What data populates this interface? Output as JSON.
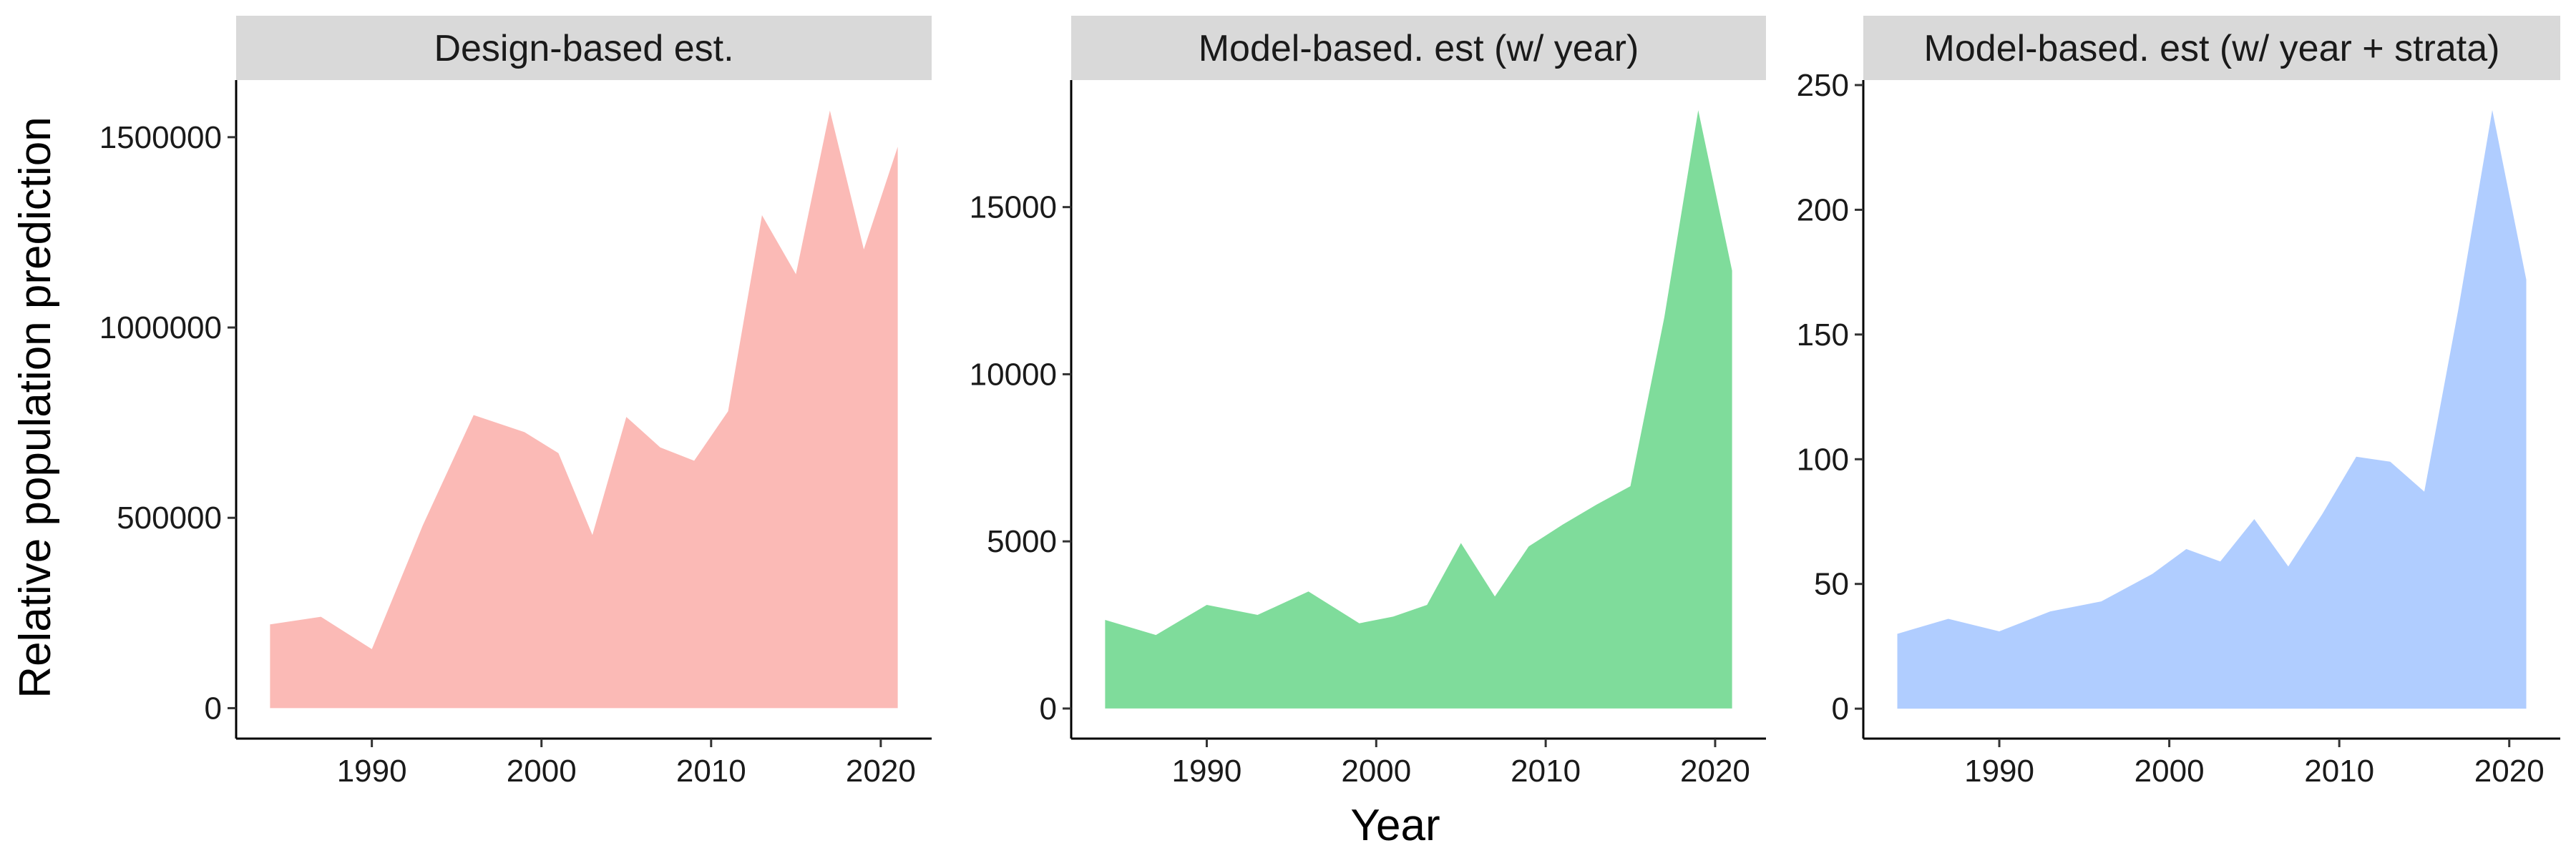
{
  "figure": {
    "xlabel": "Year",
    "ylabel": "Relative population prediction"
  },
  "chart_data": [
    {
      "type": "area",
      "title": "Design-based est.",
      "color": "#F8766D",
      "fill_opacity": 0.5,
      "x": [
        1984,
        1987,
        1990,
        1993,
        1996,
        1999,
        2001,
        2003,
        2005,
        2007,
        2009,
        2011,
        2013,
        2015,
        2017,
        2019,
        2021
      ],
      "y": [
        220000,
        240000,
        155000,
        480000,
        770000,
        725000,
        670000,
        455000,
        765000,
        685000,
        650000,
        780000,
        1295000,
        1140000,
        1570000,
        1205000,
        1475000
      ],
      "xlim": [
        1982,
        2023
      ],
      "ylim": [
        -80000,
        1650000
      ],
      "xticks": [
        1990,
        2000,
        2010,
        2020
      ],
      "yticks": [
        0,
        500000,
        1000000,
        1500000
      ],
      "xtick_labels": [
        "1990",
        "2000",
        "2010",
        "2020"
      ],
      "ytick_labels": [
        "0",
        "500000",
        "1000000",
        "1500000"
      ],
      "grid": false
    },
    {
      "type": "area",
      "title": "Model-based. est (w/ year)",
      "color": "#00BA38",
      "fill_opacity": 0.5,
      "x": [
        1984,
        1987,
        1990,
        1993,
        1996,
        1999,
        2001,
        2003,
        2005,
        2007,
        2009,
        2011,
        2013,
        2015,
        2017,
        2019,
        2021
      ],
      "y": [
        2650,
        2200,
        3100,
        2800,
        3500,
        2550,
        2750,
        3100,
        4950,
        3350,
        4850,
        5500,
        6100,
        6650,
        11700,
        17900,
        13100
      ],
      "xlim": [
        1982,
        2023
      ],
      "ylim": [
        -900,
        18800
      ],
      "xticks": [
        1990,
        2000,
        2010,
        2020
      ],
      "yticks": [
        0,
        5000,
        10000,
        15000
      ],
      "xtick_labels": [
        "1990",
        "2000",
        "2010",
        "2020"
      ],
      "ytick_labels": [
        "0",
        "5000",
        "10000",
        "15000"
      ],
      "grid": false
    },
    {
      "type": "area",
      "title": "Model-based. est (w/ year + strata)",
      "color": "#619CFF",
      "fill_opacity": 0.5,
      "x": [
        1984,
        1987,
        1990,
        1993,
        1996,
        1999,
        2001,
        2003,
        2005,
        2007,
        2009,
        2011,
        2013,
        2015,
        2017,
        2019,
        2021
      ],
      "y": [
        30,
        36,
        31,
        39,
        43,
        54,
        64,
        59,
        76,
        57,
        78,
        101,
        99,
        87,
        160,
        240,
        172
      ],
      "xlim": [
        1982,
        2023
      ],
      "ylim": [
        -12,
        252
      ],
      "xticks": [
        1990,
        2000,
        2010,
        2020
      ],
      "yticks": [
        0,
        50,
        100,
        150,
        200,
        250
      ],
      "xtick_labels": [
        "1990",
        "2000",
        "2010",
        "2020"
      ],
      "ytick_labels": [
        "0",
        "50",
        "100",
        "150",
        "200",
        "250"
      ],
      "grid": false
    }
  ]
}
